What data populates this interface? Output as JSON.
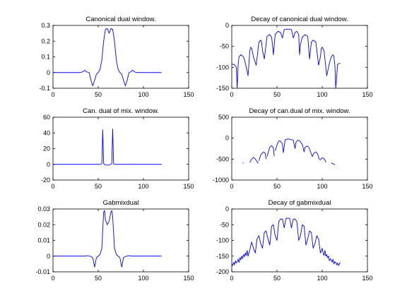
{
  "chart_data": [
    {
      "type": "line",
      "title": "Canonical dual window.",
      "xlabel": "",
      "ylabel": "",
      "xlim": [
        0,
        150
      ],
      "ylim": [
        -0.1,
        0.3
      ],
      "xticks": [
        0,
        50,
        100,
        150
      ],
      "yticks": [
        -0.1,
        0,
        0.1,
        0.2,
        0.3
      ],
      "xtick_labels": [
        "0",
        "50",
        "100",
        "150"
      ],
      "ytick_labels": [
        "-0.1",
        "0",
        "0.1",
        "0.2",
        "0.3"
      ],
      "grid": false,
      "series": [
        {
          "color": "#0000ff",
          "x": [
            0,
            30,
            33,
            35,
            37,
            40,
            42,
            44,
            46,
            48,
            50,
            52,
            54,
            56,
            58,
            60,
            62,
            64,
            66,
            68,
            70,
            72,
            74,
            76,
            78,
            80,
            82,
            84,
            86,
            88,
            90,
            92,
            95,
            120
          ],
          "y": [
            0,
            0,
            0.005,
            0.015,
            0.005,
            0,
            -0.05,
            -0.085,
            -0.05,
            -0.01,
            0,
            0.02,
            0.08,
            0.2,
            0.275,
            0.28,
            0.25,
            0.28,
            0.275,
            0.2,
            0.08,
            0.02,
            0,
            -0.01,
            -0.05,
            -0.085,
            -0.05,
            0,
            0.005,
            0.015,
            0.005,
            0,
            0,
            0
          ]
        }
      ]
    },
    {
      "type": "line",
      "title": "Decay of canonical dual window.",
      "xlabel": "",
      "ylabel": "",
      "xlim": [
        0,
        150
      ],
      "ylim": [
        -150,
        0
      ],
      "xticks": [
        0,
        50,
        100,
        150
      ],
      "yticks": [
        -150,
        -100,
        -50,
        0
      ],
      "xtick_labels": [
        "0",
        "50",
        "100",
        "150"
      ],
      "ytick_labels": [
        "-150",
        "-100",
        "-50",
        "0"
      ],
      "grid": false,
      "series": [
        {
          "color": "#0000ff",
          "x": [
            0,
            3,
            5,
            6,
            7,
            8,
            10,
            13,
            15,
            18,
            20,
            21,
            22,
            24,
            27,
            30,
            32,
            33,
            34,
            36,
            39,
            42,
            44,
            45,
            46,
            48,
            51,
            54,
            56,
            58,
            60,
            62,
            64,
            66,
            68,
            70,
            72,
            74,
            75,
            76,
            78,
            81,
            84,
            86,
            87,
            88,
            90,
            93,
            96,
            98,
            99,
            100,
            102,
            105,
            108,
            110,
            112,
            113,
            114,
            115,
            117,
            120
          ],
          "y": [
            -92,
            -94,
            -100,
            -150,
            -95,
            -75,
            -70,
            -75,
            -90,
            -120,
            -60,
            -52,
            -55,
            -75,
            -95,
            -40,
            -35,
            -40,
            -60,
            -80,
            -26,
            -22,
            -28,
            -45,
            -70,
            -22,
            -14,
            -17,
            -30,
            -10,
            -9,
            -9,
            -9,
            -10,
            -30,
            -17,
            -14,
            -22,
            -70,
            -45,
            -28,
            -22,
            -26,
            -80,
            -60,
            -40,
            -35,
            -40,
            -95,
            -75,
            -55,
            -52,
            -60,
            -120,
            -90,
            -75,
            -70,
            -75,
            -95,
            -150,
            -93,
            -90
          ]
        }
      ]
    },
    {
      "type": "line",
      "title": "Can. dual of mix. window.",
      "xlabel": "",
      "ylabel": "",
      "xlim": [
        0,
        150
      ],
      "ylim": [
        -20,
        60
      ],
      "xticks": [
        0,
        50,
        100,
        150
      ],
      "yticks": [
        -20,
        0,
        20,
        40,
        60
      ],
      "xtick_labels": [
        "0",
        "50",
        "100",
        "150"
      ],
      "ytick_labels": [
        "-20",
        "0",
        "20",
        "40",
        "60"
      ],
      "grid": false,
      "series": [
        {
          "color": "#0000ff",
          "x": [
            0,
            52,
            54,
            55,
            56,
            57,
            58,
            60,
            62,
            64,
            65,
            66,
            67,
            68,
            70,
            120
          ],
          "y": [
            0,
            0,
            1,
            44,
            1,
            0,
            -1,
            -1,
            -1,
            0,
            1,
            45,
            1,
            0,
            0,
            0
          ]
        }
      ]
    },
    {
      "type": "line",
      "title": "Decay of can.dual of mix. window.",
      "xlabel": "",
      "ylabel": "",
      "xlim": [
        0,
        150
      ],
      "ylim": [
        -1000,
        500
      ],
      "xticks": [
        0,
        50,
        100,
        150
      ],
      "yticks": [
        -1000,
        -500,
        0,
        500
      ],
      "xtick_labels": [
        "0",
        "50",
        "100",
        "150"
      ],
      "ytick_labels": [
        "-1000",
        "-500",
        "0",
        "500"
      ],
      "grid": false,
      "series": [
        {
          "color": "#0000ff",
          "segments": [
            {
              "x": [
                12,
                13
              ],
              "y": [
                -600,
                -590
              ]
            },
            {
              "x": [
                20,
                22,
                24,
                26,
                28,
                29
              ],
              "y": [
                -580,
                -500,
                -460,
                -500,
                -560,
                -600
              ]
            },
            {
              "x": [
                30,
                32,
                35,
                37,
                38
              ],
              "y": [
                -540,
                -400,
                -330,
                -360,
                -500
              ]
            },
            {
              "x": [
                39,
                42,
                44,
                46,
                47
              ],
              "y": [
                -440,
                -220,
                -180,
                -230,
                -430
              ]
            },
            {
              "x": [
                48,
                51,
                53,
                56,
                57
              ],
              "y": [
                -300,
                -100,
                -60,
                -130,
                -350
              ]
            },
            {
              "x": [
                57,
                59,
                62,
                65,
                68,
                70
              ],
              "y": [
                -350,
                -40,
                -20,
                -30,
                -50,
                -250
              ]
            },
            {
              "x": [
                70,
                71,
                73,
                75,
                78,
                80
              ],
              "y": [
                -250,
                -100,
                -50,
                -60,
                -150,
                -330
              ]
            },
            {
              "x": [
                80,
                81,
                83,
                85,
                87,
                89
              ],
              "y": [
                -330,
                -220,
                -190,
                -210,
                -320,
                -440
              ]
            },
            {
              "x": [
                89,
                91,
                93,
                95,
                97
              ],
              "y": [
                -440,
                -350,
                -330,
                -380,
                -520
              ]
            },
            {
              "x": [
                98,
                99,
                101,
                103,
                104
              ],
              "y": [
                -530,
                -480,
                -470,
                -520,
                -580
              ]
            },
            {
              "x": [
                110,
                112,
                114
              ],
              "y": [
                -590,
                -610,
                -640
              ]
            }
          ]
        }
      ]
    },
    {
      "type": "line",
      "title": "Gabmixdual",
      "xlabel": "",
      "ylabel": "",
      "xlim": [
        0,
        150
      ],
      "ylim": [
        -0.01,
        0.03
      ],
      "xticks": [
        0,
        50,
        100,
        150
      ],
      "yticks": [
        -0.01,
        0,
        0.01,
        0.02,
        0.03
      ],
      "xtick_labels": [
        "0",
        "50",
        "100",
        "150"
      ],
      "ytick_labels": [
        "-0.01",
        "0",
        "0.01",
        "0.02",
        "0.03"
      ],
      "grid": false,
      "series": [
        {
          "color": "#0000ff",
          "x": [
            0,
            36,
            38,
            40,
            42,
            44,
            46,
            48,
            50,
            52,
            54,
            56,
            57,
            58,
            60,
            62,
            64,
            65,
            66,
            68,
            70,
            72,
            74,
            76,
            78,
            80,
            82,
            84,
            86,
            120
          ],
          "y": [
            0,
            0,
            0.0003,
            0,
            -0.0002,
            -0.001,
            -0.007,
            -0.001,
            0,
            0.001,
            0.005,
            0.028,
            0.029,
            0.023,
            0.02,
            0.022,
            0.028,
            0.029,
            0.025,
            0.005,
            0.001,
            0,
            -0.001,
            -0.007,
            -0.001,
            -0.0002,
            0,
            0.0003,
            0,
            0
          ]
        }
      ]
    },
    {
      "type": "line",
      "title": "Decay of gabmixdual",
      "xlabel": "",
      "ylabel": "",
      "xlim": [
        0,
        150
      ],
      "ylim": [
        -200,
        0
      ],
      "xticks": [
        0,
        50,
        100,
        150
      ],
      "yticks": [
        -200,
        -150,
        -100,
        -50,
        0
      ],
      "xtick_labels": [
        "0",
        "50",
        "100",
        "150"
      ],
      "ytick_labels": [
        "-200",
        "-150",
        "-100",
        "-50",
        "0"
      ],
      "grid": false,
      "series": [
        {
          "color": "#0000ff",
          "x": [
            0,
            1,
            2,
            3,
            4,
            5,
            6,
            7,
            8,
            9,
            10,
            11,
            12,
            13,
            14,
            15,
            16,
            17,
            18,
            19,
            20,
            22,
            24,
            26,
            28,
            30,
            32,
            34,
            36,
            38,
            40,
            42,
            44,
            46,
            48,
            50,
            52,
            54,
            56,
            58,
            60,
            62,
            64,
            66,
            68,
            70,
            72,
            74,
            76,
            78,
            80,
            82,
            84,
            86,
            88,
            90,
            92,
            94,
            96,
            98,
            100,
            101,
            102,
            103,
            104,
            105,
            106,
            107,
            108,
            109,
            110,
            111,
            112,
            113,
            114,
            115,
            116,
            117,
            118,
            119,
            120
          ],
          "y": [
            -175,
            -180,
            -170,
            -178,
            -165,
            -172,
            -168,
            -160,
            -170,
            -155,
            -162,
            -150,
            -158,
            -145,
            -152,
            -140,
            -148,
            -132,
            -150,
            -140,
            -130,
            -105,
            -125,
            -140,
            -95,
            -85,
            -110,
            -125,
            -75,
            -70,
            -95,
            -115,
            -55,
            -50,
            -85,
            -100,
            -40,
            -32,
            -32,
            -60,
            -30,
            -29,
            -30,
            -60,
            -32,
            -32,
            -40,
            -100,
            -85,
            -50,
            -55,
            -115,
            -95,
            -70,
            -75,
            -125,
            -110,
            -85,
            -95,
            -140,
            -125,
            -140,
            -148,
            -132,
            -150,
            -145,
            -155,
            -150,
            -165,
            -158,
            -162,
            -170,
            -160,
            -175,
            -168,
            -170,
            -178,
            -172,
            -180,
            -175,
            -170
          ]
        }
      ]
    }
  ]
}
